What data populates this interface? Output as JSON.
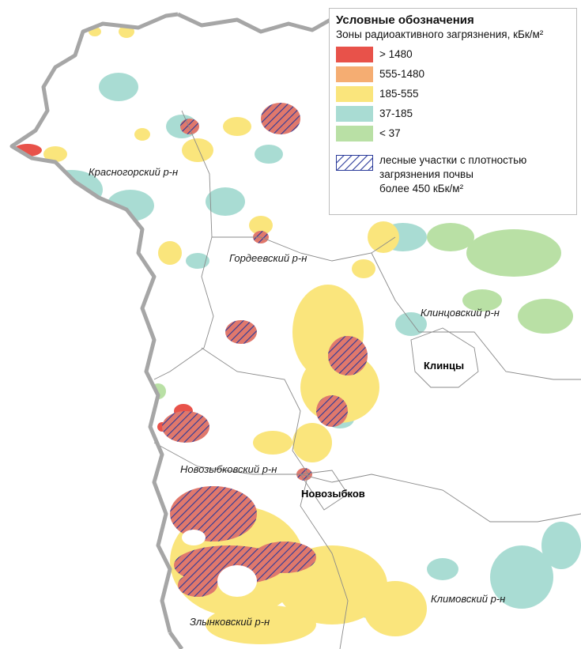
{
  "legend": {
    "title": "Условные обозначения",
    "subtitle": "Зоны радиоактивного загрязнения, кБк/м²",
    "classes": [
      {
        "label": "> 1480",
        "color": "#e8524a"
      },
      {
        "label": "555-1480",
        "color": "#f5ad72"
      },
      {
        "label": "185-555",
        "color": "#fae57c"
      },
      {
        "label": "37-185",
        "color": "#a9dcd3"
      },
      {
        "label": "< 37",
        "color": "#b9e0a5"
      }
    ],
    "hatch": {
      "line1": "лесные участки с плотностью",
      "line2": "загрязнения почвы",
      "line3": "более 450 кБк/м²",
      "color": "#2a3a9a"
    }
  },
  "districts": [
    "Красногорский р-н",
    "Гордеевский р-н",
    "Клинцовский р-н",
    "Новозыбковский р-н",
    "Злынковский р-н",
    "Климовский р-н"
  ],
  "cities": [
    "Клинцы",
    "Новозыбков"
  ],
  "colors": {
    "border": "#a6a6a6",
    "district_border": "#8a8a8a",
    "background": "#ffffff"
  }
}
